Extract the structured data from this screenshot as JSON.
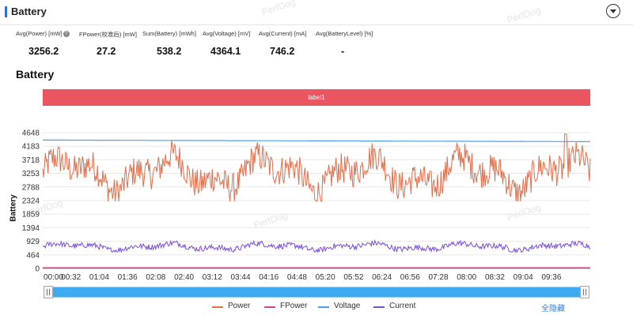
{
  "header": {
    "title": "Battery"
  },
  "watermark": "PerfDog",
  "stats": [
    {
      "label": "Avg(Power) [mW]",
      "value": "3256.2",
      "help": "?"
    },
    {
      "label": "FPower(校准后) [mW]",
      "value": "27.2"
    },
    {
      "label": "Sum(Battery) [mWh]",
      "value": "538.2"
    },
    {
      "label": "Avg(Voltage) [mV]",
      "value": "4364.1"
    },
    {
      "label": "Avg(Current) [mA]",
      "value": "746.2"
    },
    {
      "label": "Avg(BatteryLevel) [%]",
      "value": "-"
    }
  ],
  "section_title": "Battery",
  "label_bar": "label1",
  "hide_all": "全隐藏",
  "chart_data": {
    "type": "line",
    "title": "",
    "ylabel": "Battery",
    "xlabel": "",
    "ylim": [
      0,
      4648
    ],
    "y_ticks": [
      "0",
      "464",
      "929",
      "1394",
      "1859",
      "2324",
      "2788",
      "3253",
      "3718",
      "4183",
      "4648"
    ],
    "x_ticks": [
      "00:00",
      "00:32",
      "01:04",
      "01:36",
      "02:08",
      "02:40",
      "03:12",
      "03:44",
      "04:16",
      "04:48",
      "05:20",
      "05:52",
      "06:24",
      "06:56",
      "07:28",
      "08:00",
      "08:32",
      "09:04",
      "09:36"
    ],
    "x_range_seconds": [
      0,
      620
    ],
    "legend_position": "bottom",
    "grid": true,
    "series": [
      {
        "name": "Power",
        "color": "#e0704d",
        "mean": 3256,
        "min": 2300,
        "max": 4600,
        "shape": "noisy-fluctuating",
        "peak_at_seconds": 592
      },
      {
        "name": "FPower",
        "color": "#e0409a",
        "mean": 27,
        "shape": "flat-near-zero"
      },
      {
        "name": "Voltage",
        "color": "#4a9ff0",
        "mean": 4364,
        "start": 4395,
        "end": 4340,
        "shape": "slowly-declining"
      },
      {
        "name": "Current",
        "color": "#7b4fe0",
        "mean": 746,
        "min": 560,
        "max": 1000,
        "shape": "noisy-fluctuating"
      }
    ]
  }
}
